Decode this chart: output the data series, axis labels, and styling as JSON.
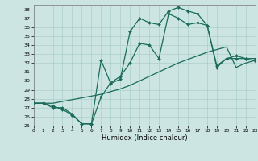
{
  "xlabel": "Humidex (Indice chaleur)",
  "xlim": [
    0,
    23
  ],
  "ylim": [
    25,
    38.5
  ],
  "yticks": [
    25,
    26,
    27,
    28,
    29,
    30,
    31,
    32,
    33,
    34,
    35,
    36,
    37,
    38
  ],
  "xticks": [
    0,
    1,
    2,
    3,
    4,
    5,
    6,
    7,
    8,
    9,
    10,
    11,
    12,
    13,
    14,
    15,
    16,
    17,
    18,
    19,
    20,
    21,
    22,
    23
  ],
  "bg_color": "#cce5e3",
  "grid_color": "#aacfcc",
  "line_color": "#1a6b5a",
  "line1_x": [
    0,
    1,
    2,
    3,
    4,
    5,
    6,
    7,
    8,
    9,
    10,
    11,
    12,
    13,
    14,
    15,
    16,
    17,
    18,
    19,
    20,
    21,
    22,
    23
  ],
  "line1_y": [
    27.5,
    27.5,
    27.2,
    26.8,
    26.2,
    25.2,
    25.2,
    32.3,
    29.7,
    30.2,
    35.5,
    37.0,
    36.5,
    36.3,
    37.8,
    38.2,
    37.8,
    37.5,
    36.2,
    31.7,
    32.5,
    32.8,
    32.5,
    32.2
  ],
  "line2_x": [
    0,
    1,
    2,
    3,
    4,
    5,
    6,
    7,
    8,
    9,
    10,
    11,
    12,
    13,
    14,
    15,
    16,
    17,
    18,
    19,
    20,
    21,
    22,
    23
  ],
  "line2_y": [
    27.5,
    27.5,
    27.0,
    27.0,
    26.3,
    25.2,
    25.2,
    28.2,
    29.8,
    30.5,
    32.0,
    34.2,
    34.0,
    32.5,
    37.5,
    37.0,
    36.3,
    36.5,
    36.2,
    31.5,
    32.5,
    32.5,
    32.5,
    32.5
  ],
  "line3_x": [
    0,
    1,
    2,
    3,
    4,
    5,
    6,
    7,
    8,
    9,
    10,
    11,
    12,
    13,
    14,
    15,
    16,
    17,
    18,
    19,
    20,
    21,
    22,
    23
  ],
  "line3_y": [
    27.5,
    27.5,
    27.5,
    27.7,
    27.9,
    28.1,
    28.3,
    28.5,
    28.8,
    29.1,
    29.5,
    30.0,
    30.5,
    31.0,
    31.5,
    32.0,
    32.4,
    32.8,
    33.2,
    33.5,
    33.8,
    31.5,
    32.0,
    32.3
  ]
}
